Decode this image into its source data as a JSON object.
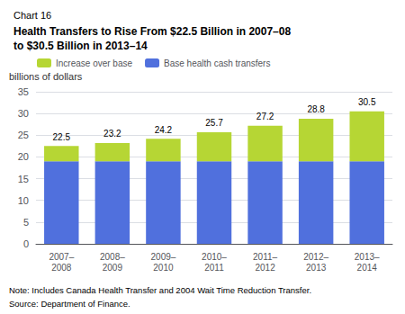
{
  "chart_data": {
    "type": "bar",
    "chart_label": "Chart 16",
    "title": "Health Transfers to Rise From $22.5 Billion in 2007–08\nto $30.5 Billion in 2013–14",
    "ylabel": "billions of dollars",
    "categories": [
      "2007–\n2008",
      "2008–\n2009",
      "2009–\n2010",
      "2010–\n2011",
      "2011–\n2012",
      "2012–\n2013",
      "2013–\n2014"
    ],
    "stacked": true,
    "series": [
      {
        "name": "Base health cash transfers",
        "values": [
          19.0,
          19.0,
          19.0,
          19.0,
          19.0,
          19.0,
          19.0
        ]
      },
      {
        "name": "Increase over base",
        "values": [
          3.5,
          4.2,
          5.2,
          6.7,
          8.2,
          9.8,
          11.5
        ]
      }
    ],
    "totals": [
      22.5,
      23.2,
      24.2,
      25.7,
      27.2,
      28.8,
      30.5
    ],
    "ylim": [
      0,
      35
    ],
    "yticks": [
      0,
      5,
      10,
      15,
      20,
      25,
      30,
      35
    ],
    "grid": true,
    "legend": "upper left",
    "note": "Note: Includes Canada Health Transfer and 2004 Wait Time Reduction Transfer.",
    "source": "Source: Department of Finance."
  }
}
